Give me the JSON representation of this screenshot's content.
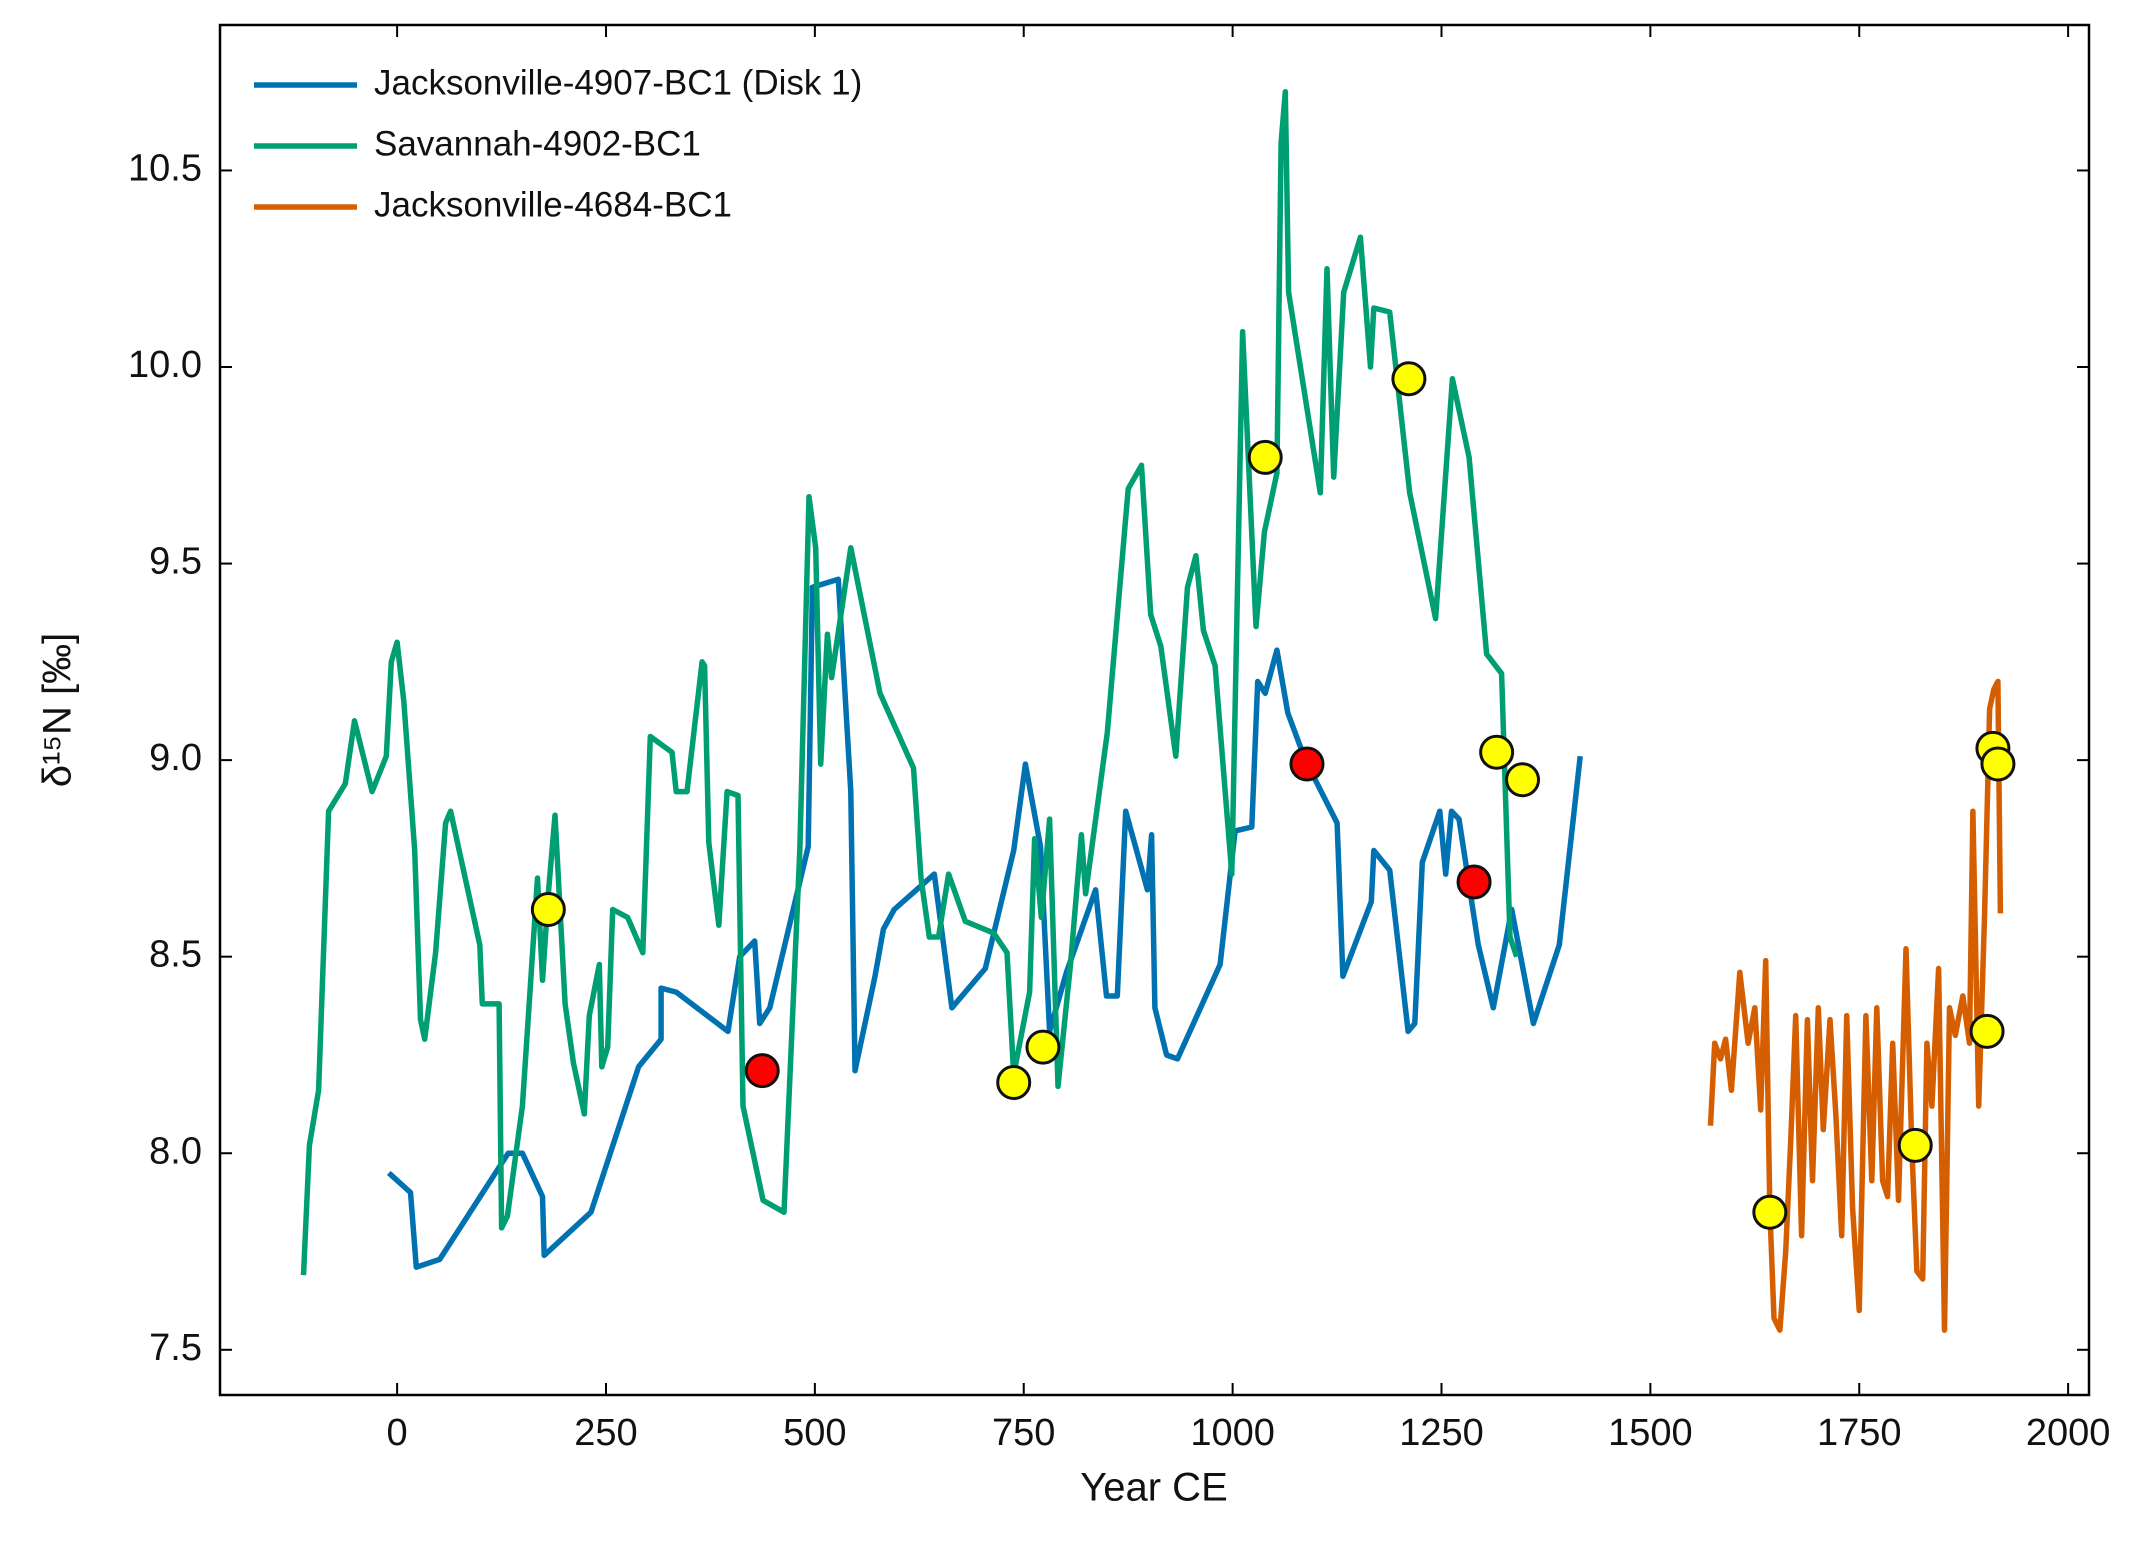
{
  "chart_data": {
    "type": "line",
    "xlabel": "Year CE",
    "ylabel": "δ¹⁵N [‰]",
    "xlim": [
      -212,
      2025
    ],
    "ylim": [
      7.385,
      10.87
    ],
    "xticks": [
      0,
      250,
      500,
      750,
      1000,
      1250,
      1500,
      1750,
      2000
    ],
    "yticks": [
      {
        "value": 7.5,
        "label": "7.5"
      },
      {
        "value": 8,
        "label": "8.0"
      },
      {
        "value": 8.5,
        "label": "8.5"
      },
      {
        "value": 9,
        "label": "9.0"
      },
      {
        "value": 9.5,
        "label": "9.5"
      },
      {
        "value": 10,
        "label": "10.0"
      },
      {
        "value": 10.5,
        "label": "10.5"
      }
    ],
    "legend": "upper left",
    "series": [
      {
        "name": "Jacksonville-4907-BC1 (Disk 1)",
        "color": "#0072b2",
        "x": [
          -10,
          16,
          23,
          51,
          133,
          150,
          174,
          176,
          232,
          289,
          316,
          316,
          334,
          396,
          410,
          428,
          434,
          446,
          492,
          497,
          528,
          543,
          548,
          572,
          582,
          595,
          643,
          664,
          704,
          738,
          752,
          770,
          781,
          801,
          836,
          849,
          862,
          872,
          898,
          903,
          907,
          921,
          934,
          985,
          1003,
          1023,
          1030,
          1039,
          1053,
          1066,
          1087,
          1125,
          1132,
          1166,
          1169,
          1188,
          1210,
          1218,
          1227,
          1248,
          1255,
          1262,
          1271,
          1294,
          1312,
          1334,
          1360,
          1391,
          1416
        ],
        "values": [
          7.95,
          7.9,
          7.71,
          7.73,
          8.0,
          8.0,
          7.89,
          7.74,
          7.85,
          8.22,
          8.29,
          8.42,
          8.41,
          8.31,
          8.5,
          8.54,
          8.33,
          8.37,
          8.78,
          9.44,
          9.46,
          8.92,
          8.21,
          8.45,
          8.57,
          8.62,
          8.71,
          8.37,
          8.47,
          8.77,
          8.99,
          8.78,
          8.31,
          8.46,
          8.67,
          8.4,
          8.4,
          8.87,
          8.67,
          8.81,
          8.37,
          8.25,
          8.24,
          8.48,
          8.82,
          8.83,
          9.2,
          9.17,
          9.28,
          9.12,
          9.0,
          8.84,
          8.45,
          8.64,
          8.77,
          8.72,
          8.31,
          8.33,
          8.74,
          8.87,
          8.71,
          8.87,
          8.85,
          8.53,
          8.37,
          8.62,
          8.33,
          8.53,
          9.01
        ]
      },
      {
        "name": "Savannah-4902-BC1",
        "color": "#009e73",
        "x": [
          -112,
          -105,
          -94,
          -82,
          -62,
          -51,
          -30,
          -13,
          -7,
          0,
          8,
          21,
          28,
          33,
          46,
          58,
          64,
          99,
          102,
          122,
          125,
          132,
          150,
          168,
          174,
          181,
          189,
          201,
          211,
          224,
          230,
          242,
          245,
          252,
          258,
          276,
          294,
          303,
          329,
          334,
          347,
          365,
          368,
          373,
          385,
          395,
          408,
          414,
          438,
          463,
          482,
          493,
          501,
          507,
          515,
          520,
          543,
          578,
          618,
          627,
          637,
          648,
          660,
          680,
          714,
          730,
          738,
          757,
          763,
          771,
          781,
          791,
          806,
          819,
          824,
          850,
          875,
          891,
          902,
          914,
          932,
          946,
          956,
          965,
          979,
          999,
          1012,
          1028,
          1038,
          1053,
          1058,
          1063,
          1067,
          1105,
          1113,
          1121,
          1133,
          1153,
          1165,
          1169,
          1188,
          1212,
          1243,
          1263,
          1283,
          1304,
          1322,
          1332,
          1340
        ],
        "values": [
          7.69,
          8.02,
          8.16,
          8.87,
          8.94,
          9.1,
          8.92,
          9.01,
          9.25,
          9.3,
          9.15,
          8.77,
          8.34,
          8.29,
          8.51,
          8.84,
          8.87,
          8.53,
          8.38,
          8.38,
          7.81,
          7.84,
          8.12,
          8.7,
          8.44,
          8.66,
          8.86,
          8.38,
          8.23,
          8.1,
          8.35,
          8.48,
          8.22,
          8.27,
          8.62,
          8.6,
          8.51,
          9.06,
          9.02,
          8.92,
          8.92,
          9.25,
          9.24,
          8.79,
          8.58,
          8.92,
          8.91,
          8.12,
          7.88,
          7.85,
          8.77,
          9.67,
          9.54,
          8.99,
          9.32,
          9.21,
          9.54,
          9.17,
          8.98,
          8.7,
          8.55,
          8.55,
          8.71,
          8.59,
          8.56,
          8.51,
          8.2,
          8.41,
          8.8,
          8.6,
          8.85,
          8.17,
          8.48,
          8.81,
          8.66,
          9.07,
          9.69,
          9.75,
          9.37,
          9.29,
          9.01,
          9.44,
          9.52,
          9.33,
          9.24,
          8.71,
          10.09,
          9.34,
          9.58,
          9.73,
          10.57,
          10.7,
          10.19,
          9.68,
          10.25,
          9.72,
          10.19,
          10.33,
          10.0,
          10.15,
          10.14,
          9.68,
          9.36,
          9.97,
          9.77,
          9.27,
          9.22,
          8.55,
          8.5
        ]
      },
      {
        "name": "Jacksonville-4684-BC1",
        "color": "#d55e00",
        "x": [
          1572,
          1577,
          1584,
          1590,
          1597,
          1607,
          1617,
          1625,
          1632,
          1638,
          1643,
          1648,
          1655,
          1662,
          1668,
          1674,
          1681,
          1688,
          1694,
          1701,
          1707,
          1715,
          1722,
          1729,
          1735,
          1742,
          1750,
          1758,
          1765,
          1771,
          1778,
          1784,
          1790,
          1797,
          1806,
          1813,
          1819,
          1826,
          1831,
          1837,
          1845,
          1852,
          1858,
          1865,
          1874,
          1882,
          1886,
          1893,
          1900,
          1906,
          1911,
          1916,
          1919
        ],
        "values": [
          8.07,
          8.28,
          8.24,
          8.29,
          8.16,
          8.46,
          8.28,
          8.37,
          8.11,
          8.49,
          7.86,
          7.58,
          7.55,
          7.75,
          8.03,
          8.35,
          7.79,
          8.34,
          7.93,
          8.37,
          8.06,
          8.34,
          8.1,
          7.79,
          8.35,
          7.86,
          7.6,
          8.35,
          7.93,
          8.37,
          7.93,
          7.89,
          8.28,
          7.88,
          8.52,
          8.01,
          7.7,
          7.68,
          8.28,
          8.12,
          8.47,
          7.55,
          8.37,
          8.3,
          8.4,
          8.28,
          8.87,
          8.12,
          8.61,
          9.13,
          9.18,
          9.2,
          8.61
        ]
      }
    ],
    "markers": [
      {
        "color": "#ffff00",
        "x": [
          181,
          738,
          773,
          1039,
          1211,
          1316,
          1347,
          1643,
          1817,
          1903,
          1910,
          1916
        ],
        "values": [
          8.62,
          8.18,
          8.27,
          9.77,
          9.97,
          9.02,
          8.95,
          7.85,
          8.02,
          8.31,
          9.03,
          8.99
        ]
      },
      {
        "color": "#ff0000",
        "x": [
          437,
          1089,
          1289
        ],
        "values": [
          8.21,
          8.99,
          8.69
        ]
      }
    ]
  }
}
